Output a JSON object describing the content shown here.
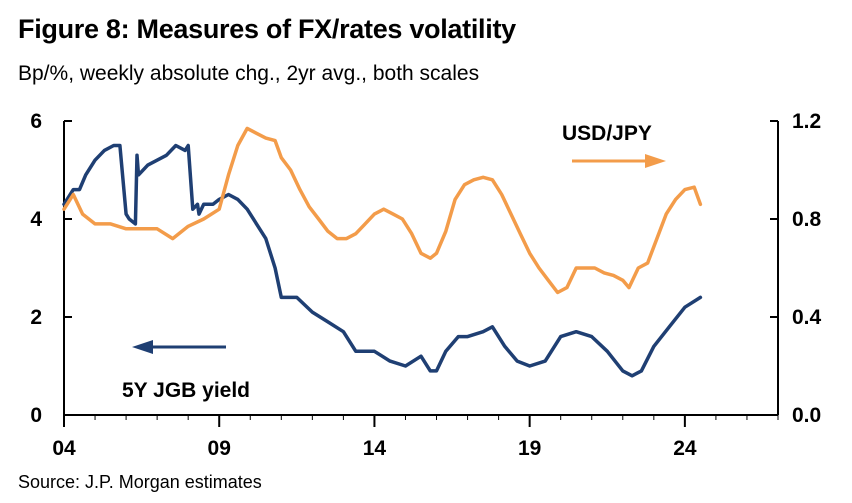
{
  "title": "Figure 8: Measures of FX/rates volatility",
  "subtitle": "Bp/%, weekly absolute chg., 2yr avg., both scales",
  "source": "Source: J.P. Morgan estimates",
  "chart_data": {
    "type": "line",
    "x_unit": "year",
    "x_range": [
      2004,
      2027
    ],
    "x_ticks": [
      2004,
      2009,
      2014,
      2019,
      2024
    ],
    "x_tick_labels": [
      "04",
      "09",
      "14",
      "19",
      "24"
    ],
    "y_left": {
      "range": [
        0,
        6
      ],
      "ticks": [
        0,
        2,
        4,
        6
      ],
      "tick_labels": [
        "0",
        "2",
        "4",
        "6"
      ]
    },
    "y_right": {
      "range": [
        0,
        1.2
      ],
      "ticks": [
        0,
        0.4,
        0.8,
        1.2
      ],
      "tick_labels": [
        "0.0",
        "0.4",
        "0.8",
        "1.2"
      ]
    },
    "grid": false,
    "series": [
      {
        "name": "5Y JGB yield",
        "axis": "left",
        "color": "#1f3f73",
        "annotation": "5Y JGB yield",
        "x": [
          2004.0,
          2004.3,
          2004.5,
          2004.7,
          2005.0,
          2005.3,
          2005.6,
          2005.8,
          2006.0,
          2006.1,
          2006.3,
          2006.35,
          2006.4,
          2006.7,
          2007.0,
          2007.3,
          2007.6,
          2007.9,
          2008.0,
          2008.15,
          2008.3,
          2008.35,
          2008.5,
          2008.8,
          2009.0,
          2009.3,
          2009.6,
          2009.9,
          2010.2,
          2010.5,
          2010.8,
          2011.0,
          2011.5,
          2012.0,
          2012.5,
          2013.0,
          2013.4,
          2013.7,
          2014.0,
          2014.5,
          2015.0,
          2015.5,
          2015.8,
          2016.0,
          2016.3,
          2016.7,
          2017.0,
          2017.5,
          2017.8,
          2018.2,
          2018.6,
          2019.0,
          2019.5,
          2020.0,
          2020.5,
          2021.0,
          2021.5,
          2022.0,
          2022.3,
          2022.6,
          2023.0,
          2023.5,
          2024.0,
          2024.5
        ],
        "values": [
          4.3,
          4.6,
          4.6,
          4.9,
          5.2,
          5.4,
          5.5,
          5.5,
          4.1,
          4.0,
          3.9,
          5.3,
          4.9,
          5.1,
          5.2,
          5.3,
          5.5,
          5.4,
          5.5,
          4.2,
          4.3,
          4.1,
          4.3,
          4.3,
          4.4,
          4.5,
          4.4,
          4.2,
          3.9,
          3.6,
          3.0,
          2.4,
          2.4,
          2.1,
          1.9,
          1.7,
          1.3,
          1.3,
          1.3,
          1.1,
          1.0,
          1.2,
          0.9,
          0.9,
          1.3,
          1.6,
          1.6,
          1.7,
          1.8,
          1.4,
          1.1,
          1.0,
          1.1,
          1.6,
          1.7,
          1.6,
          1.3,
          0.9,
          0.8,
          0.9,
          1.4,
          1.8,
          2.2,
          2.4
        ]
      },
      {
        "name": "USD/JPY",
        "axis": "right",
        "color": "#f39c4a",
        "annotation": "USD/JPY",
        "x": [
          2004.0,
          2004.3,
          2004.6,
          2005.0,
          2005.5,
          2006.0,
          2006.5,
          2007.0,
          2007.5,
          2008.0,
          2008.5,
          2009.0,
          2009.3,
          2009.6,
          2009.9,
          2010.2,
          2010.5,
          2010.8,
          2011.0,
          2011.3,
          2011.6,
          2011.9,
          2012.2,
          2012.5,
          2012.8,
          2013.1,
          2013.4,
          2013.7,
          2014.0,
          2014.3,
          2014.6,
          2014.9,
          2015.2,
          2015.5,
          2015.8,
          2016.0,
          2016.3,
          2016.6,
          2016.9,
          2017.2,
          2017.5,
          2017.8,
          2018.1,
          2018.4,
          2018.7,
          2019.0,
          2019.3,
          2019.6,
          2019.9,
          2020.2,
          2020.5,
          2020.8,
          2021.1,
          2021.4,
          2021.7,
          2022.0,
          2022.2,
          2022.5,
          2022.8,
          2023.1,
          2023.4,
          2023.7,
          2024.0,
          2024.3,
          2024.5
        ],
        "values": [
          0.84,
          0.9,
          0.82,
          0.78,
          0.78,
          0.76,
          0.76,
          0.76,
          0.72,
          0.77,
          0.8,
          0.84,
          0.98,
          1.1,
          1.17,
          1.15,
          1.13,
          1.12,
          1.05,
          1.0,
          0.92,
          0.85,
          0.8,
          0.75,
          0.72,
          0.72,
          0.74,
          0.78,
          0.82,
          0.84,
          0.82,
          0.8,
          0.74,
          0.66,
          0.64,
          0.66,
          0.75,
          0.88,
          0.94,
          0.96,
          0.97,
          0.96,
          0.9,
          0.82,
          0.74,
          0.66,
          0.6,
          0.55,
          0.5,
          0.52,
          0.6,
          0.6,
          0.6,
          0.58,
          0.57,
          0.55,
          0.52,
          0.6,
          0.62,
          0.72,
          0.82,
          0.88,
          0.92,
          0.93,
          0.86
        ]
      }
    ]
  }
}
